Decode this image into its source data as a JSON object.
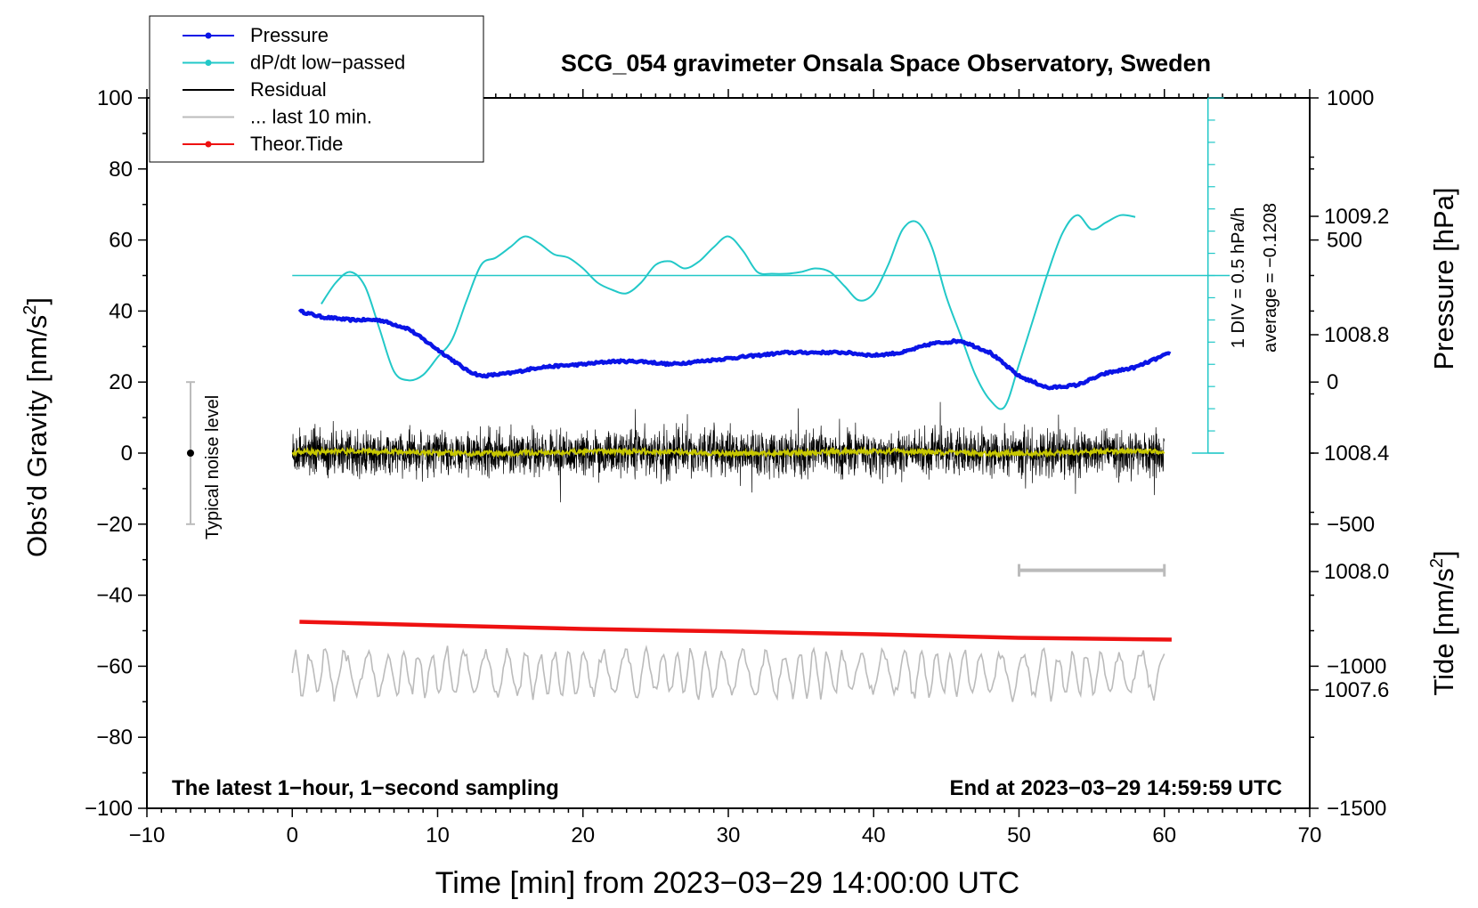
{
  "chart_data": {
    "type": "line",
    "title": "SCG_054 gravimeter Onsala Space Observatory, Sweden",
    "xlabel": "Time [min] from 2023−03−29 14:00:00 UTC",
    "ylabel_left_main": "Obs’d Gravity [nm/s",
    "ylabel_left_sup": "2",
    "ylabel_left_end": "]",
    "ylabel_right_pressure": "Pressure [hPa]",
    "ylabel_right_tide_main": "Tide [nm/s",
    "ylabel_right_tide_sup": "2",
    "ylabel_right_tide_end": "]",
    "xlim": [
      -10,
      70
    ],
    "ylim": [
      -100,
      100
    ],
    "pressure_axis": [
      1007.2,
      1009.6
    ],
    "tide_axis": [
      -1500,
      1000
    ],
    "x_ticks": [
      {
        "v": -10,
        "label": "−10"
      },
      {
        "v": 0,
        "label": "0"
      },
      {
        "v": 10,
        "label": "10"
      },
      {
        "v": 20,
        "label": "20"
      },
      {
        "v": 30,
        "label": "30"
      },
      {
        "v": 40,
        "label": "40"
      },
      {
        "v": 50,
        "label": "50"
      },
      {
        "v": 60,
        "label": "60"
      },
      {
        "v": 70,
        "label": "70"
      }
    ],
    "y_ticks": [
      {
        "v": 100,
        "label": "100"
      },
      {
        "v": 80,
        "label": "80"
      },
      {
        "v": 60,
        "label": "60"
      },
      {
        "v": 40,
        "label": "40"
      },
      {
        "v": 20,
        "label": "20"
      },
      {
        "v": 0,
        "label": "0"
      },
      {
        "v": -20,
        "label": "−20"
      },
      {
        "v": -40,
        "label": "−40"
      },
      {
        "v": -60,
        "label": "−60"
      },
      {
        "v": -80,
        "label": "−80"
      },
      {
        "v": -100,
        "label": "−100"
      }
    ],
    "pressure_ticks": [
      {
        "v": 1009.2,
        "label": "1009.2"
      },
      {
        "v": 1008.8,
        "label": "1008.8"
      },
      {
        "v": 1008.4,
        "label": "1008.4"
      },
      {
        "v": 1008.0,
        "label": "1008.0"
      },
      {
        "v": 1007.6,
        "label": "1007.6"
      }
    ],
    "tide_ticks": [
      {
        "v": 1000,
        "label": "1000"
      },
      {
        "v": 500,
        "label": "500"
      },
      {
        "v": 0,
        "label": "0"
      },
      {
        "v": -500,
        "label": "−500"
      },
      {
        "v": -1000,
        "label": "−1000"
      },
      {
        "v": -1500,
        "label": "−1500"
      }
    ],
    "legend": [
      {
        "label": "Pressure",
        "color": "#0a14e6",
        "marker": true
      },
      {
        "label": "dP/dt low−passed",
        "color": "#22c8c8",
        "marker": true
      },
      {
        "label": "Residual",
        "color": "#000000",
        "marker": false
      },
      {
        "label": "... last 10 min.",
        "color": "#bbbbbb",
        "marker": false
      },
      {
        "label": "Theor.Tide",
        "color": "#ee1111",
        "marker": true
      }
    ],
    "series": [
      {
        "name": "Pressure",
        "unit": "hPa",
        "color": "#0a14e6",
        "points": [
          [
            0.5,
            1008.88
          ],
          [
            2,
            1008.86
          ],
          [
            4,
            1008.85
          ],
          [
            6,
            1008.85
          ],
          [
            8,
            1008.82
          ],
          [
            10,
            1008.75
          ],
          [
            12,
            1008.68
          ],
          [
            13,
            1008.66
          ],
          [
            15,
            1008.67
          ],
          [
            17,
            1008.69
          ],
          [
            20,
            1008.7
          ],
          [
            22,
            1008.71
          ],
          [
            24,
            1008.71
          ],
          [
            26,
            1008.7
          ],
          [
            28,
            1008.71
          ],
          [
            30,
            1008.72
          ],
          [
            32,
            1008.73
          ],
          [
            34,
            1008.74
          ],
          [
            36,
            1008.74
          ],
          [
            38,
            1008.74
          ],
          [
            40,
            1008.73
          ],
          [
            42,
            1008.74
          ],
          [
            44,
            1008.77
          ],
          [
            46,
            1008.78
          ],
          [
            48,
            1008.74
          ],
          [
            50,
            1008.66
          ],
          [
            52,
            1008.62
          ],
          [
            54,
            1008.63
          ],
          [
            56,
            1008.67
          ],
          [
            58,
            1008.69
          ],
          [
            60.5,
            1008.74
          ]
        ]
      },
      {
        "name": "dP/dt low−passed",
        "unit": "nm/s2",
        "color": "#22c8c8",
        "points": [
          [
            2,
            42
          ],
          [
            3,
            48
          ],
          [
            4,
            51
          ],
          [
            5,
            47
          ],
          [
            6,
            35
          ],
          [
            7,
            23
          ],
          [
            8,
            20.5
          ],
          [
            9,
            22
          ],
          [
            10,
            27
          ],
          [
            11,
            32
          ],
          [
            12,
            43
          ],
          [
            13,
            53
          ],
          [
            14,
            55
          ],
          [
            15,
            58
          ],
          [
            16,
            61
          ],
          [
            17,
            59
          ],
          [
            18,
            56
          ],
          [
            19,
            55
          ],
          [
            20,
            52
          ],
          [
            21,
            48
          ],
          [
            22,
            46
          ],
          [
            23,
            45
          ],
          [
            24,
            48
          ],
          [
            25,
            53
          ],
          [
            26,
            54
          ],
          [
            27,
            52
          ],
          [
            28,
            54
          ],
          [
            29,
            58
          ],
          [
            30,
            61
          ],
          [
            31,
            57
          ],
          [
            32,
            51
          ],
          [
            33,
            50.5
          ],
          [
            34,
            50.5
          ],
          [
            35,
            51
          ],
          [
            36,
            52
          ],
          [
            37,
            51
          ],
          [
            38,
            47
          ],
          [
            39,
            43
          ],
          [
            40,
            45
          ],
          [
            41,
            53
          ],
          [
            42,
            63
          ],
          [
            43,
            65
          ],
          [
            44,
            58
          ],
          [
            45,
            44
          ],
          [
            46,
            33
          ],
          [
            47,
            22
          ],
          [
            48,
            15
          ],
          [
            49,
            13
          ],
          [
            50,
            25
          ],
          [
            51,
            38
          ],
          [
            52,
            51
          ],
          [
            53,
            62
          ],
          [
            54,
            67
          ],
          [
            55,
            63
          ],
          [
            56,
            65
          ],
          [
            57,
            67
          ],
          [
            58,
            66.5
          ]
        ]
      },
      {
        "name": "Theor.Tide",
        "unit": "nm/s2",
        "color": "#ee1111",
        "points": [
          [
            0.5,
            -47.5
          ],
          [
            10,
            -48.5
          ],
          [
            20,
            -49.5
          ],
          [
            30,
            -50.2
          ],
          [
            40,
            -51.0
          ],
          [
            50,
            -52.0
          ],
          [
            60.5,
            -52.5
          ]
        ]
      }
    ],
    "average_line": {
      "value": 50,
      "color": "#22c8c8"
    },
    "typical_noise_level": {
      "label": "Typical noise level",
      "x": -7,
      "center": 0,
      "low": -20,
      "high": 20
    },
    "scale_bar": {
      "label_1": "1 DIV = 0.5 hPa/h",
      "label_2": "average = −0.1208"
    },
    "last_10_min_bar": {
      "x_start": 50,
      "x_end": 60,
      "y": -33
    },
    "residual": {
      "x_start": 0,
      "x_end": 60,
      "amplitude": 7,
      "smoothed_color": "#c8c800"
    },
    "last_10_min_trace": {
      "center": -62,
      "amplitude": 6
    },
    "bottom_left_note": "The latest 1−hour, 1−second sampling",
    "bottom_right_note": "End at 2023−03−29 14:59:59 UTC"
  }
}
